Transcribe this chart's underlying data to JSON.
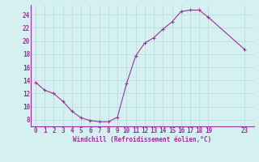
{
  "x": [
    0,
    1,
    2,
    3,
    4,
    5,
    6,
    7,
    8,
    9,
    10,
    11,
    12,
    13,
    14,
    15,
    16,
    17,
    18,
    19,
    23
  ],
  "y": [
    13.7,
    12.5,
    12.0,
    10.8,
    9.3,
    8.3,
    7.9,
    7.7,
    7.7,
    8.4,
    13.5,
    17.7,
    19.7,
    20.5,
    21.8,
    22.9,
    24.5,
    24.7,
    24.7,
    23.6,
    18.7
  ],
  "line_color": "#993399",
  "marker": "+",
  "bg_color": "#d4f0f0",
  "grid_color": "#b8d8d8",
  "axis_color": "#993399",
  "xlabel": "Windchill (Refroidissement éolien,°C)",
  "xticks": [
    0,
    1,
    2,
    3,
    4,
    5,
    6,
    7,
    8,
    9,
    10,
    11,
    12,
    13,
    14,
    15,
    16,
    17,
    18,
    19,
    23
  ],
  "yticks": [
    8,
    10,
    12,
    14,
    16,
    18,
    20,
    22,
    24
  ],
  "ylim": [
    7.0,
    25.5
  ],
  "xlim": [
    -0.5,
    24.0
  ],
  "label_fontsize": 5.5,
  "tick_fontsize": 5.5
}
